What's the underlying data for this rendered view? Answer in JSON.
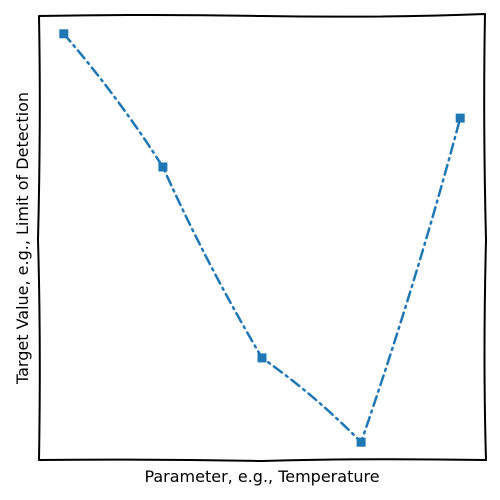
{
  "chart_data": {
    "type": "line",
    "title": "",
    "xlabel": "Parameter, e.g., Temperature",
    "ylabel": "Target Value, e.g., Limit of Detection",
    "x": [
      1,
      2,
      3,
      4,
      5
    ],
    "xlim": [
      0.75,
      5.25
    ],
    "ylim": [
      0.0,
      1.0
    ],
    "series": [
      {
        "values": [
          0.96,
          0.66,
          0.23,
          0.04,
          0.77
        ],
        "color": "#1f77b4",
        "line_style": "dash-dot",
        "marker": "square"
      }
    ],
    "show_ticks": false,
    "grid": false,
    "legend": "none"
  }
}
